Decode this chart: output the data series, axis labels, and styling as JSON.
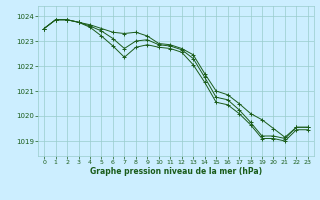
{
  "title": "Graphe pression niveau de la mer (hPa)",
  "bg_color": "#cceeff",
  "grid_color": "#99cccc",
  "line_color": "#1a5c1a",
  "xlim": [
    -0.5,
    23.5
  ],
  "ylim": [
    1018.4,
    1024.4
  ],
  "yticks": [
    1019,
    1020,
    1021,
    1022,
    1023,
    1024
  ],
  "xticks": [
    0,
    1,
    2,
    3,
    4,
    5,
    6,
    7,
    8,
    9,
    10,
    11,
    12,
    13,
    14,
    15,
    16,
    17,
    18,
    19,
    20,
    21,
    22,
    23
  ],
  "series": [
    [
      1023.5,
      1023.85,
      1023.85,
      1023.75,
      1023.65,
      1023.5,
      1023.35,
      1023.3,
      1023.35,
      1023.2,
      1022.9,
      1022.85,
      1022.7,
      1022.45,
      1021.7,
      1021.0,
      1020.85,
      1020.5,
      1020.1,
      1019.85,
      1019.5,
      1019.15,
      1019.55,
      1019.55
    ],
    [
      1023.5,
      1023.85,
      1023.85,
      1023.75,
      1023.6,
      1023.4,
      1023.1,
      1022.7,
      1023.0,
      1023.05,
      1022.85,
      1022.8,
      1022.65,
      1022.3,
      1021.55,
      1020.75,
      1020.65,
      1020.25,
      1019.75,
      1019.2,
      1019.2,
      1019.1,
      1019.55,
      1019.55
    ],
    [
      1023.5,
      1023.85,
      1023.85,
      1023.75,
      1023.55,
      1023.2,
      1022.8,
      1022.35,
      1022.75,
      1022.85,
      1022.75,
      1022.7,
      1022.55,
      1022.05,
      1021.35,
      1020.55,
      1020.45,
      1020.1,
      1019.65,
      1019.1,
      1019.1,
      1019.0,
      1019.45,
      1019.45
    ]
  ]
}
